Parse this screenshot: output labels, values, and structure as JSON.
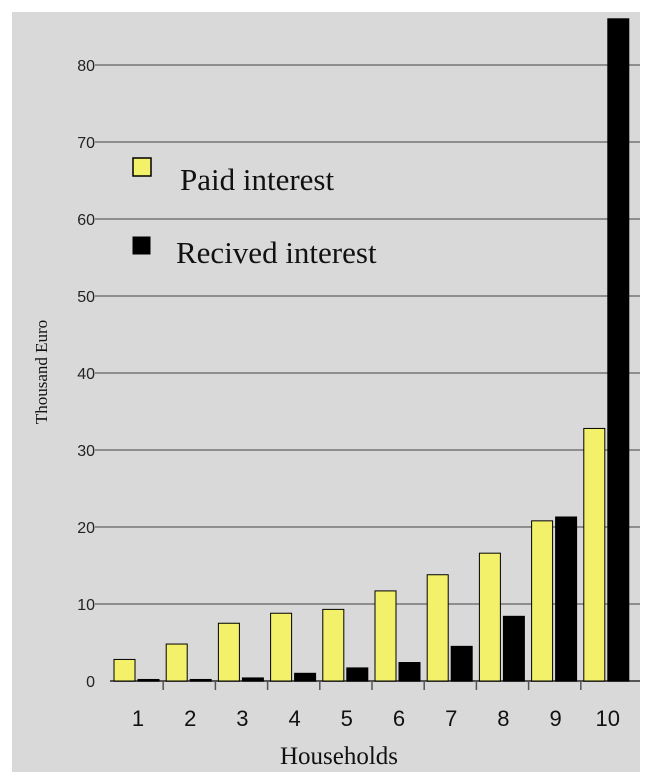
{
  "chart_data": {
    "type": "bar",
    "categories": [
      "1",
      "2",
      "3",
      "4",
      "5",
      "6",
      "7",
      "8",
      "9",
      "10"
    ],
    "series": [
      {
        "name": "Paid interest",
        "color": "#f3f06a",
        "values": [
          2.8,
          4.8,
          7.5,
          8.8,
          9.3,
          11.7,
          13.8,
          16.6,
          20.8,
          32.8
        ]
      },
      {
        "name": "Recived interest",
        "color": "#000000",
        "values": [
          0.2,
          0.2,
          0.4,
          1.0,
          1.7,
          2.4,
          4.5,
          8.4,
          21.3,
          86.0
        ]
      }
    ],
    "xlabel": "Households",
    "ylabel": "Thousand Euro",
    "ylim": [
      0,
      86
    ],
    "yticks": [
      0,
      10,
      20,
      30,
      40,
      50,
      60,
      70,
      80
    ],
    "grid": true,
    "legend": "upper-left",
    "background": "#d9d9d9"
  }
}
